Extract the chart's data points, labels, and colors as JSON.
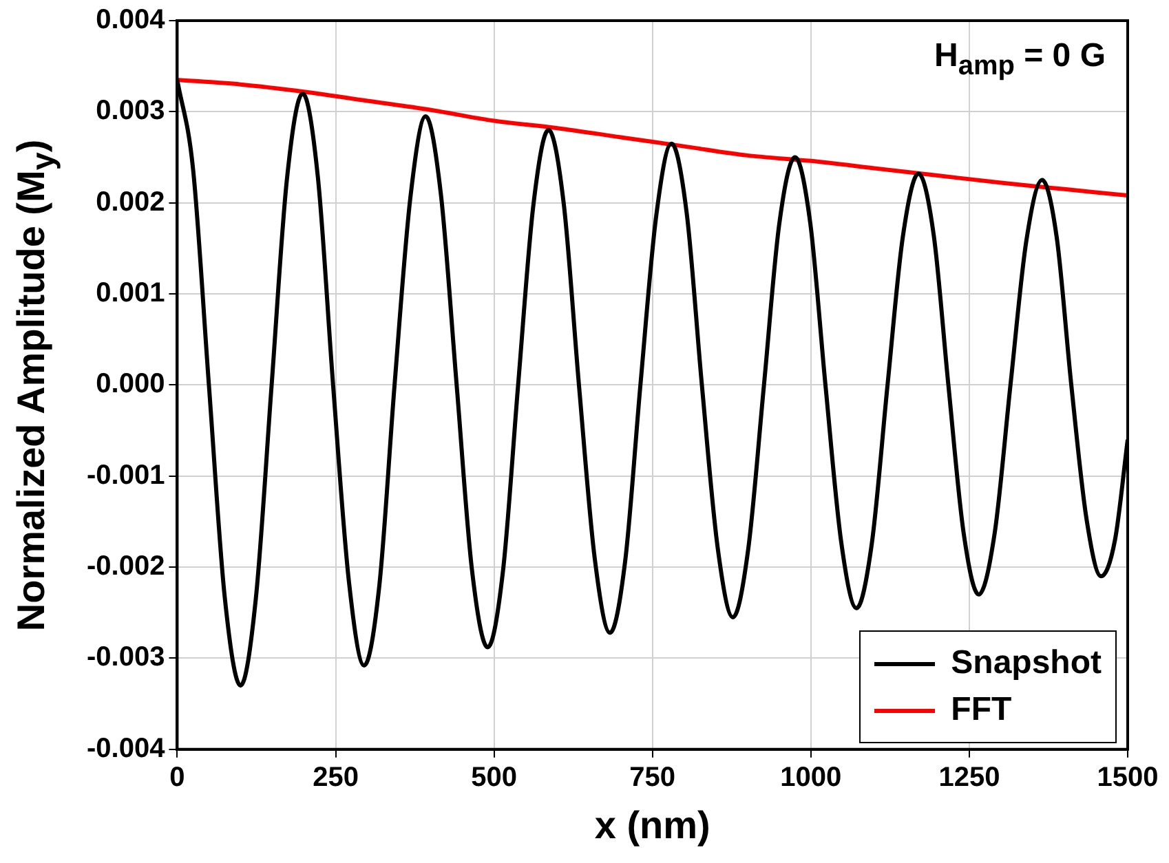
{
  "chart_data": {
    "type": "line",
    "xlabel": "x (nm)",
    "ylabel": "Normalized Amplitude (M$_{y}$)",
    "annotations": [
      "H$_{amp}$ = 0 G"
    ],
    "xlim": [
      0,
      1500
    ],
    "xticks": [
      0,
      250,
      500,
      750,
      1000,
      1250,
      1500
    ],
    "ylim": [
      -0.004,
      0.004
    ],
    "yticks": [
      -0.004,
      -0.003,
      -0.002,
      -0.001,
      {
        "value": 0,
        "label": "0.000"
      },
      0.001,
      0.002,
      0.003,
      0.004
    ],
    "grid": true,
    "legend": "bottom right",
    "marker": "none",
    "line_style": "solid",
    "series": [
      {
        "name": "Snapshot",
        "color": "#000000",
        "x": [
          0,
          25,
          50,
          75,
          100,
          124,
          149,
          173,
          198,
          222,
          246,
          271,
          295,
          319,
          343,
          368,
          392,
          416,
          441,
          465,
          490,
          514,
          538,
          562,
          586,
          610,
          634,
          659,
          683,
          707,
          731,
          756,
          780,
          804,
          828,
          853,
          877,
          901,
          926,
          950,
          975,
          999,
          1023,
          1048,
          1072,
          1096,
          1121,
          1145,
          1170,
          1194,
          1217,
          1241,
          1265,
          1290,
          1315,
          1340,
          1365,
          1388,
          1411,
          1435,
          1458,
          1480,
          1500
        ],
        "values": [
          0.00335,
          0.00237,
          0.0,
          -0.00233,
          -0.0033,
          -0.00235,
          0.0,
          0.00225,
          0.0032,
          0.00228,
          0.0,
          -0.00216,
          -0.00308,
          -0.0022,
          0.0,
          0.00206,
          0.00295,
          0.0021,
          0.0,
          -0.00202,
          -0.00288,
          -0.00205,
          0.0,
          0.00197,
          0.0028,
          0.00199,
          0.0,
          -0.00191,
          -0.00272,
          -0.00193,
          0.0,
          0.00186,
          0.00265,
          0.00189,
          0.0,
          -0.00179,
          -0.00255,
          -0.00181,
          0.0,
          0.00176,
          0.0025,
          0.00178,
          0.0,
          -0.00173,
          -0.00245,
          -0.00175,
          0.0,
          0.00162,
          0.00232,
          0.00164,
          0.0,
          -0.00162,
          -0.0023,
          -0.00163,
          0.0,
          0.00158,
          0.00225,
          0.00162,
          0.0,
          -0.00147,
          -0.0021,
          -0.0017,
          -0.0006
        ]
      },
      {
        "name": "FFT",
        "color": "#ff0000",
        "x": [
          0,
          100,
          200,
          300,
          400,
          500,
          600,
          700,
          800,
          900,
          1000,
          1100,
          1200,
          1300,
          1400,
          1500
        ],
        "values": [
          0.00335,
          0.0033,
          0.00322,
          0.00312,
          0.00302,
          0.0029,
          0.00282,
          0.00272,
          0.00262,
          0.00252,
          0.00246,
          0.00238,
          0.0023,
          0.00222,
          0.00215,
          0.00208
        ]
      }
    ]
  }
}
